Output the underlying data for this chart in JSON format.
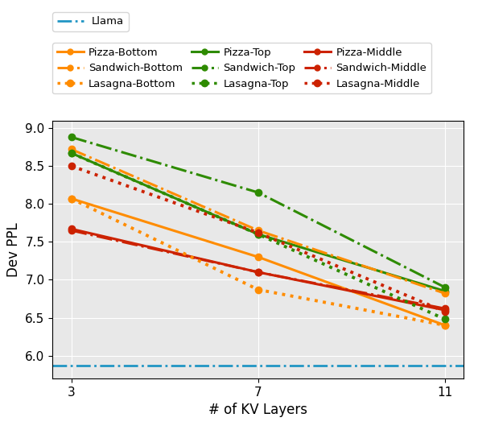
{
  "x": [
    3,
    7,
    11
  ],
  "llama_y": 5.87,
  "series": [
    {
      "label": "Pizza-Bottom",
      "color": "#FF8C00",
      "style": "solid",
      "y": [
        8.07,
        7.3,
        6.4
      ]
    },
    {
      "label": "Pizza-Top",
      "color": "#2E8B00",
      "style": "solid",
      "y": [
        8.67,
        7.6,
        6.85
      ]
    },
    {
      "label": "Pizza-Middle",
      "color": "#CC2200",
      "style": "solid",
      "y": [
        7.67,
        7.1,
        6.6
      ]
    },
    {
      "label": "Sandwich-Bottom",
      "color": "#FF8C00",
      "style": "dashdot",
      "y": [
        8.72,
        7.65,
        6.82
      ]
    },
    {
      "label": "Sandwich-Top",
      "color": "#2E8B00",
      "style": "dashdot",
      "y": [
        8.88,
        8.15,
        6.9
      ]
    },
    {
      "label": "Sandwich-Middle",
      "color": "#CC2200",
      "style": "dashdot",
      "y": [
        7.65,
        7.1,
        6.62
      ]
    },
    {
      "label": "Lasagna-Bottom",
      "color": "#FF8C00",
      "style": "dotted",
      "y": [
        8.07,
        6.87,
        6.4
      ]
    },
    {
      "label": "Lasagna-Top",
      "color": "#2E8B00",
      "style": "dotted",
      "y": [
        8.67,
        7.6,
        6.48
      ]
    },
    {
      "label": "Lasagna-Middle",
      "color": "#CC2200",
      "style": "dotted",
      "y": [
        8.5,
        7.62,
        6.58
      ]
    }
  ],
  "xlabel": "# of KV Layers",
  "ylabel": "Dev PPL",
  "ylim": [
    5.7,
    9.1
  ],
  "yticks": [
    6.0,
    6.5,
    7.0,
    7.5,
    8.0,
    8.5,
    9.0
  ],
  "xticks": [
    3,
    7,
    11
  ],
  "llama_label": "Llama",
  "llama_color": "#2196C4",
  "background_color": "#E8E8E8",
  "legend_fontsize": 9.5,
  "axis_fontsize": 12,
  "tick_fontsize": 11,
  "linewidth": 2.2,
  "markersize": 6
}
